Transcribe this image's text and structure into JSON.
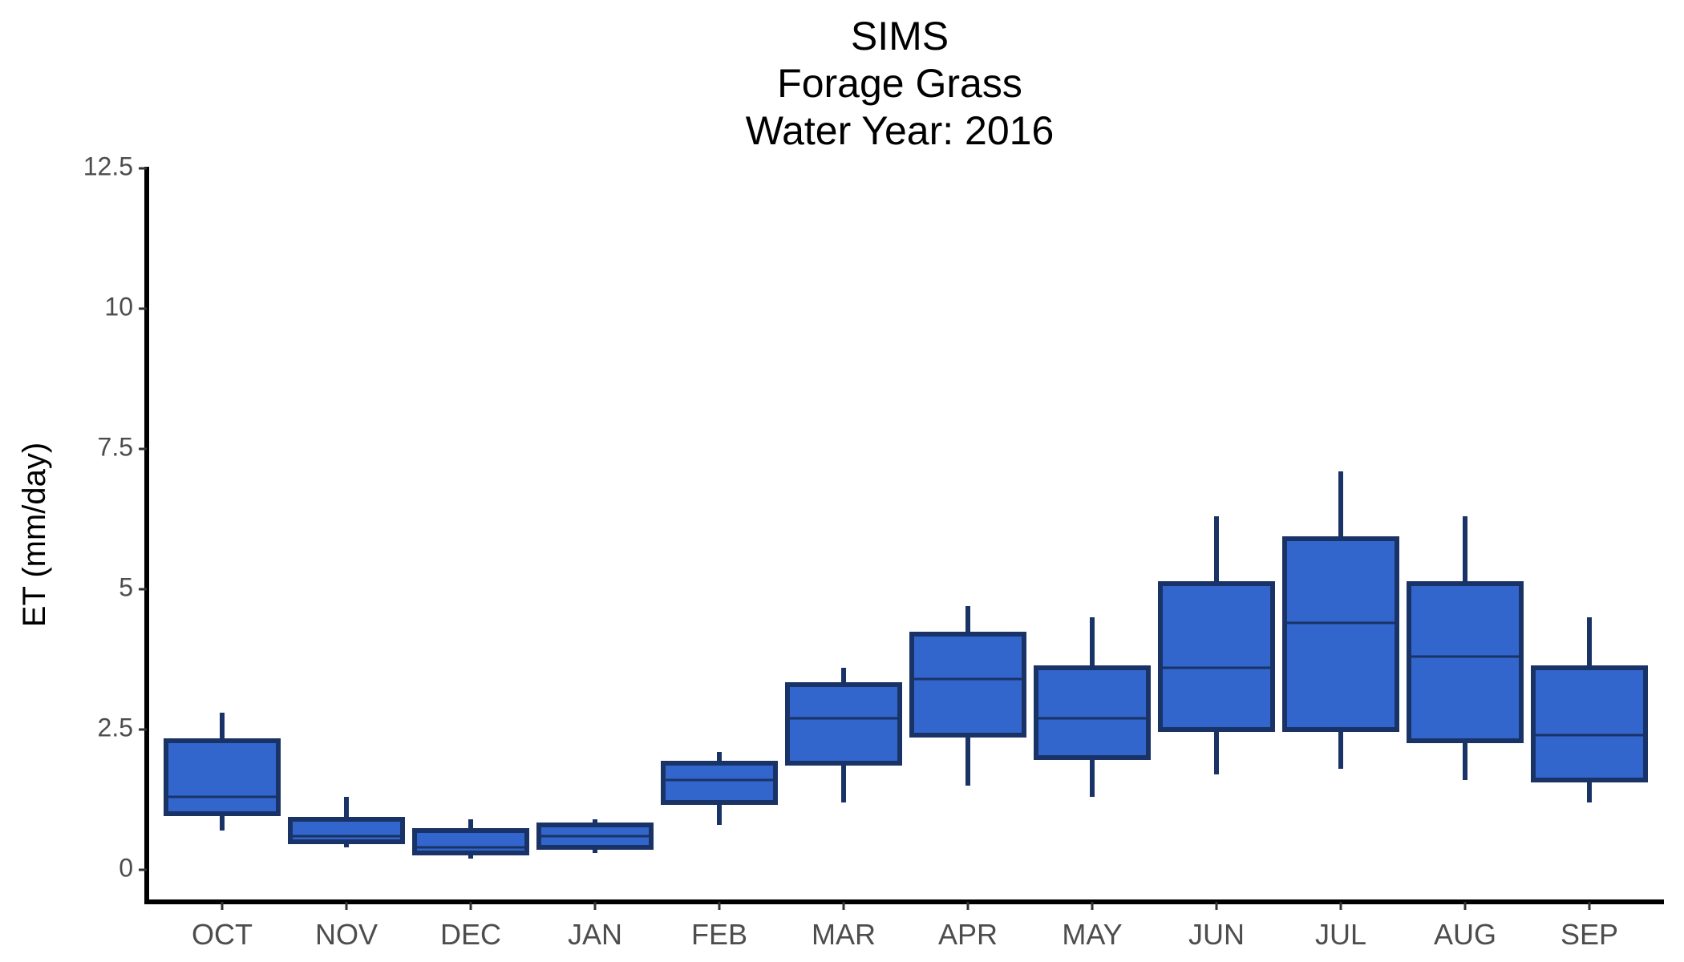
{
  "chart_data": {
    "type": "boxplot",
    "title_lines": [
      "SIMS",
      "Forage Grass",
      "Water Year: 2016"
    ],
    "xlabel": "",
    "ylabel": "ET (mm/day)",
    "ylim": [
      0,
      12.5
    ],
    "yticks": [
      0,
      2.5,
      5,
      7.5,
      10,
      12.5
    ],
    "ytick_labels": [
      "0",
      "2.5",
      "5",
      "7.5",
      "10",
      "12.5"
    ],
    "categories": [
      "OCT",
      "NOV",
      "DEC",
      "JAN",
      "FEB",
      "MAR",
      "APR",
      "MAY",
      "JUN",
      "JUL",
      "AUG",
      "SEP"
    ],
    "boxes": [
      {
        "month": "OCT",
        "min": 0.7,
        "q1": 1.0,
        "median": 1.3,
        "q3": 2.3,
        "max": 2.8
      },
      {
        "month": "NOV",
        "min": 0.4,
        "q1": 0.5,
        "median": 0.6,
        "q3": 0.9,
        "max": 1.3
      },
      {
        "month": "DEC",
        "min": 0.2,
        "q1": 0.3,
        "median": 0.4,
        "q3": 0.7,
        "max": 0.9
      },
      {
        "month": "JAN",
        "min": 0.3,
        "q1": 0.4,
        "median": 0.6,
        "q3": 0.8,
        "max": 0.9
      },
      {
        "month": "FEB",
        "min": 0.8,
        "q1": 1.2,
        "median": 1.6,
        "q3": 1.9,
        "max": 2.1
      },
      {
        "month": "MAR",
        "min": 1.2,
        "q1": 1.9,
        "median": 2.7,
        "q3": 3.3,
        "max": 3.6
      },
      {
        "month": "APR",
        "min": 1.5,
        "q1": 2.4,
        "median": 3.4,
        "q3": 4.2,
        "max": 4.7
      },
      {
        "month": "MAY",
        "min": 1.3,
        "q1": 2.0,
        "median": 2.7,
        "q3": 3.6,
        "max": 4.5
      },
      {
        "month": "JUN",
        "min": 1.7,
        "q1": 2.5,
        "median": 3.6,
        "q3": 5.1,
        "max": 6.3
      },
      {
        "month": "JUL",
        "min": 1.8,
        "q1": 2.5,
        "median": 4.4,
        "q3": 5.9,
        "max": 7.1
      },
      {
        "month": "AUG",
        "min": 1.6,
        "q1": 2.3,
        "median": 3.8,
        "q3": 5.1,
        "max": 6.3
      },
      {
        "month": "SEP",
        "min": 1.2,
        "q1": 1.6,
        "median": 2.4,
        "q3": 3.6,
        "max": 4.5
      }
    ],
    "box_fill": "#3366cc",
    "box_outline": "#1a3366",
    "grid": false,
    "legend": "none"
  }
}
